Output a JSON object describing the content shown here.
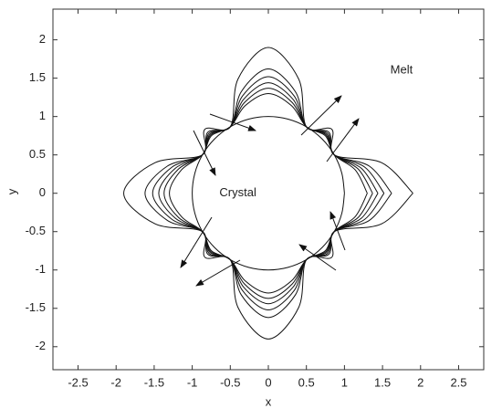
{
  "chart_data": {
    "type": "line",
    "xlabel": "x",
    "ylabel": "y",
    "annotations": [
      {
        "text": "Melt",
        "x": 1.75,
        "y": 1.6
      },
      {
        "text": "Crystal",
        "x": -0.4,
        "y": 0
      }
    ],
    "xlim": [
      -2.83,
      2.83
    ],
    "ylim": [
      -2.3,
      2.4
    ],
    "xticks": [
      -2.5,
      -2,
      -1.5,
      -1,
      -0.5,
      0,
      0.5,
      1,
      1.5,
      2,
      2.5
    ],
    "yticks": [
      -2,
      -1.5,
      -1,
      -0.5,
      0,
      0.5,
      1,
      1.5,
      2
    ],
    "grid": false,
    "color": "#111",
    "series": [
      {
        "x": [
          1,
          0.966,
          0.866,
          0.707,
          0.5,
          0.259,
          0,
          -0.259,
          -0.5,
          -0.707,
          -0.866,
          -0.966,
          -1,
          -0.966,
          -0.866,
          -0.707,
          -0.5,
          -0.259,
          0,
          0.259,
          0.5,
          0.707,
          0.866,
          0.966,
          1
        ],
        "y": [
          0,
          0.259,
          0.5,
          0.707,
          0.866,
          0.966,
          1,
          0.966,
          0.866,
          0.707,
          0.5,
          0.259,
          0,
          -0.259,
          -0.5,
          -0.707,
          -0.866,
          -0.966,
          -1,
          -0.966,
          -0.866,
          -0.707,
          -0.5,
          -0.259,
          0
        ]
      },
      {
        "x": [
          1.3,
          1.14,
          0.866,
          0.749,
          0.5,
          0.306,
          0,
          -0.306,
          -0.5,
          -0.749,
          -0.866,
          -1.14,
          -1.3,
          -1.14,
          -0.866,
          -0.749,
          -0.5,
          -0.306,
          0,
          0.306,
          0.5,
          0.749,
          0.866,
          1.14,
          1.3
        ],
        "y": [
          0,
          0.306,
          0.5,
          0.749,
          0.866,
          1.14,
          1.3,
          1.14,
          0.866,
          0.749,
          0.5,
          0.306,
          0,
          -0.306,
          -0.5,
          -0.749,
          -0.866,
          -1.14,
          -1.3,
          -1.14,
          -0.866,
          -0.749,
          -0.5,
          -0.306,
          0
        ]
      },
      {
        "x": [
          1.37,
          1.18,
          0.866,
          0.759,
          0.5,
          0.316,
          0,
          -0.316,
          -0.5,
          -0.759,
          -0.866,
          -1.18,
          -1.37,
          -1.18,
          -0.866,
          -0.759,
          -0.5,
          -0.316,
          0,
          0.316,
          0.5,
          0.759,
          0.866,
          1.18,
          1.37
        ],
        "y": [
          0,
          0.316,
          0.5,
          0.759,
          0.866,
          1.18,
          1.37,
          1.18,
          0.866,
          0.759,
          0.5,
          0.316,
          0,
          -0.316,
          -0.5,
          -0.759,
          -0.866,
          -1.18,
          -1.37,
          -1.18,
          -0.866,
          -0.759,
          -0.5,
          -0.316,
          0
        ]
      },
      {
        "x": [
          1.44,
          1.221,
          0.866,
          0.769,
          0.5,
          0.327,
          0,
          -0.327,
          -0.5,
          -0.769,
          -0.866,
          -1.221,
          -1.44,
          -1.221,
          -0.866,
          -0.769,
          -0.5,
          -0.327,
          0,
          0.327,
          0.5,
          0.769,
          0.866,
          1.221,
          1.44
        ],
        "y": [
          0,
          0.327,
          0.5,
          0.769,
          0.866,
          1.221,
          1.44,
          1.221,
          0.866,
          0.769,
          0.5,
          0.327,
          0,
          -0.327,
          -0.5,
          -0.769,
          -0.866,
          -1.221,
          -1.44,
          -1.221,
          -0.866,
          -0.769,
          -0.5,
          -0.327,
          0
        ]
      },
      {
        "x": [
          1.52,
          1.267,
          0.866,
          0.781,
          0.5,
          0.34,
          0,
          -0.34,
          -0.5,
          -0.781,
          -0.866,
          -1.267,
          -1.52,
          -1.267,
          -0.866,
          -0.781,
          -0.5,
          -0.34,
          0,
          0.34,
          0.5,
          0.781,
          0.866,
          1.267,
          1.52
        ],
        "y": [
          0,
          0.34,
          0.5,
          0.781,
          0.866,
          1.267,
          1.52,
          1.267,
          0.866,
          0.781,
          0.5,
          0.34,
          0,
          -0.34,
          -0.5,
          -0.781,
          -0.866,
          -1.267,
          -1.52,
          -1.267,
          -0.866,
          -0.781,
          -0.5,
          -0.34,
          0
        ]
      },
      {
        "x": [
          1.62,
          1.325,
          0.866,
          0.795,
          0.5,
          0.355,
          0,
          -0.355,
          -0.5,
          -0.795,
          -0.866,
          -1.325,
          -1.62,
          -1.325,
          -0.866,
          -0.795,
          -0.5,
          -0.355,
          0,
          0.355,
          0.5,
          0.795,
          0.866,
          1.325,
          1.62
        ],
        "y": [
          0,
          0.355,
          0.5,
          0.795,
          0.866,
          1.325,
          1.62,
          1.325,
          0.866,
          0.795,
          0.5,
          0.355,
          0,
          -0.355,
          -0.5,
          -0.795,
          -0.866,
          -1.325,
          -1.62,
          -1.325,
          -0.866,
          -0.795,
          -0.5,
          -0.355,
          0
        ]
      },
      {
        "x": [
          1.9,
          1.488,
          0.866,
          0.834,
          0.5,
          0.399,
          0,
          -0.399,
          -0.5,
          -0.834,
          -0.866,
          -1.488,
          -1.9,
          -1.488,
          -0.866,
          -0.834,
          -0.5,
          -0.399,
          0,
          0.399,
          0.5,
          0.834,
          0.866,
          1.488,
          1.9
        ],
        "y": [
          0,
          0.399,
          0.5,
          0.834,
          0.866,
          1.488,
          1.9,
          1.488,
          0.866,
          0.834,
          0.5,
          0.399,
          0,
          -0.399,
          -0.5,
          -0.834,
          -0.866,
          -1.488,
          -1.9,
          -1.488,
          -0.866,
          -0.834,
          -0.5,
          -0.399,
          0
        ]
      }
    ]
  }
}
